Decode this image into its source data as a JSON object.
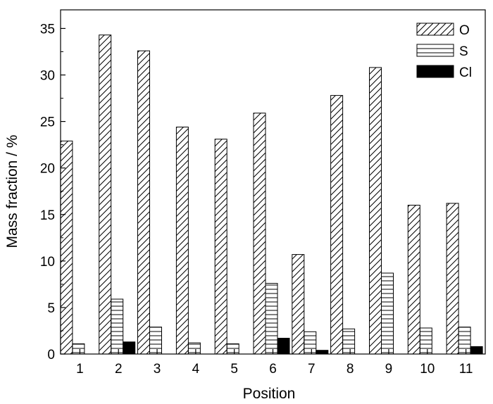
{
  "chart_data": {
    "type": "bar",
    "categories": [
      "1",
      "2",
      "3",
      "4",
      "5",
      "6",
      "7",
      "8",
      "9",
      "10",
      "11"
    ],
    "series": [
      {
        "name": "O",
        "values": [
          22.9,
          34.3,
          32.6,
          24.4,
          23.1,
          25.9,
          10.7,
          27.8,
          30.8,
          16.0,
          16.2
        ],
        "pattern": "diagonal"
      },
      {
        "name": "S",
        "values": [
          1.1,
          5.9,
          2.9,
          1.2,
          1.1,
          7.6,
          2.4,
          2.7,
          8.7,
          2.8,
          2.9
        ],
        "pattern": "horizontal"
      },
      {
        "name": "Cl",
        "values": [
          0.0,
          1.3,
          0.0,
          0.0,
          0.0,
          1.7,
          0.4,
          0.0,
          0.0,
          0.0,
          0.8
        ],
        "pattern": "solid"
      }
    ],
    "xlabel": "Position",
    "ylabel": "Mass fraction / %",
    "ylim": [
      0,
      37
    ],
    "yticks": [
      0,
      5,
      10,
      15,
      20,
      25,
      30,
      35
    ],
    "grid": false,
    "legend": "top-right",
    "colors": {
      "stroke": "#000000",
      "background": "#ffffff"
    }
  }
}
